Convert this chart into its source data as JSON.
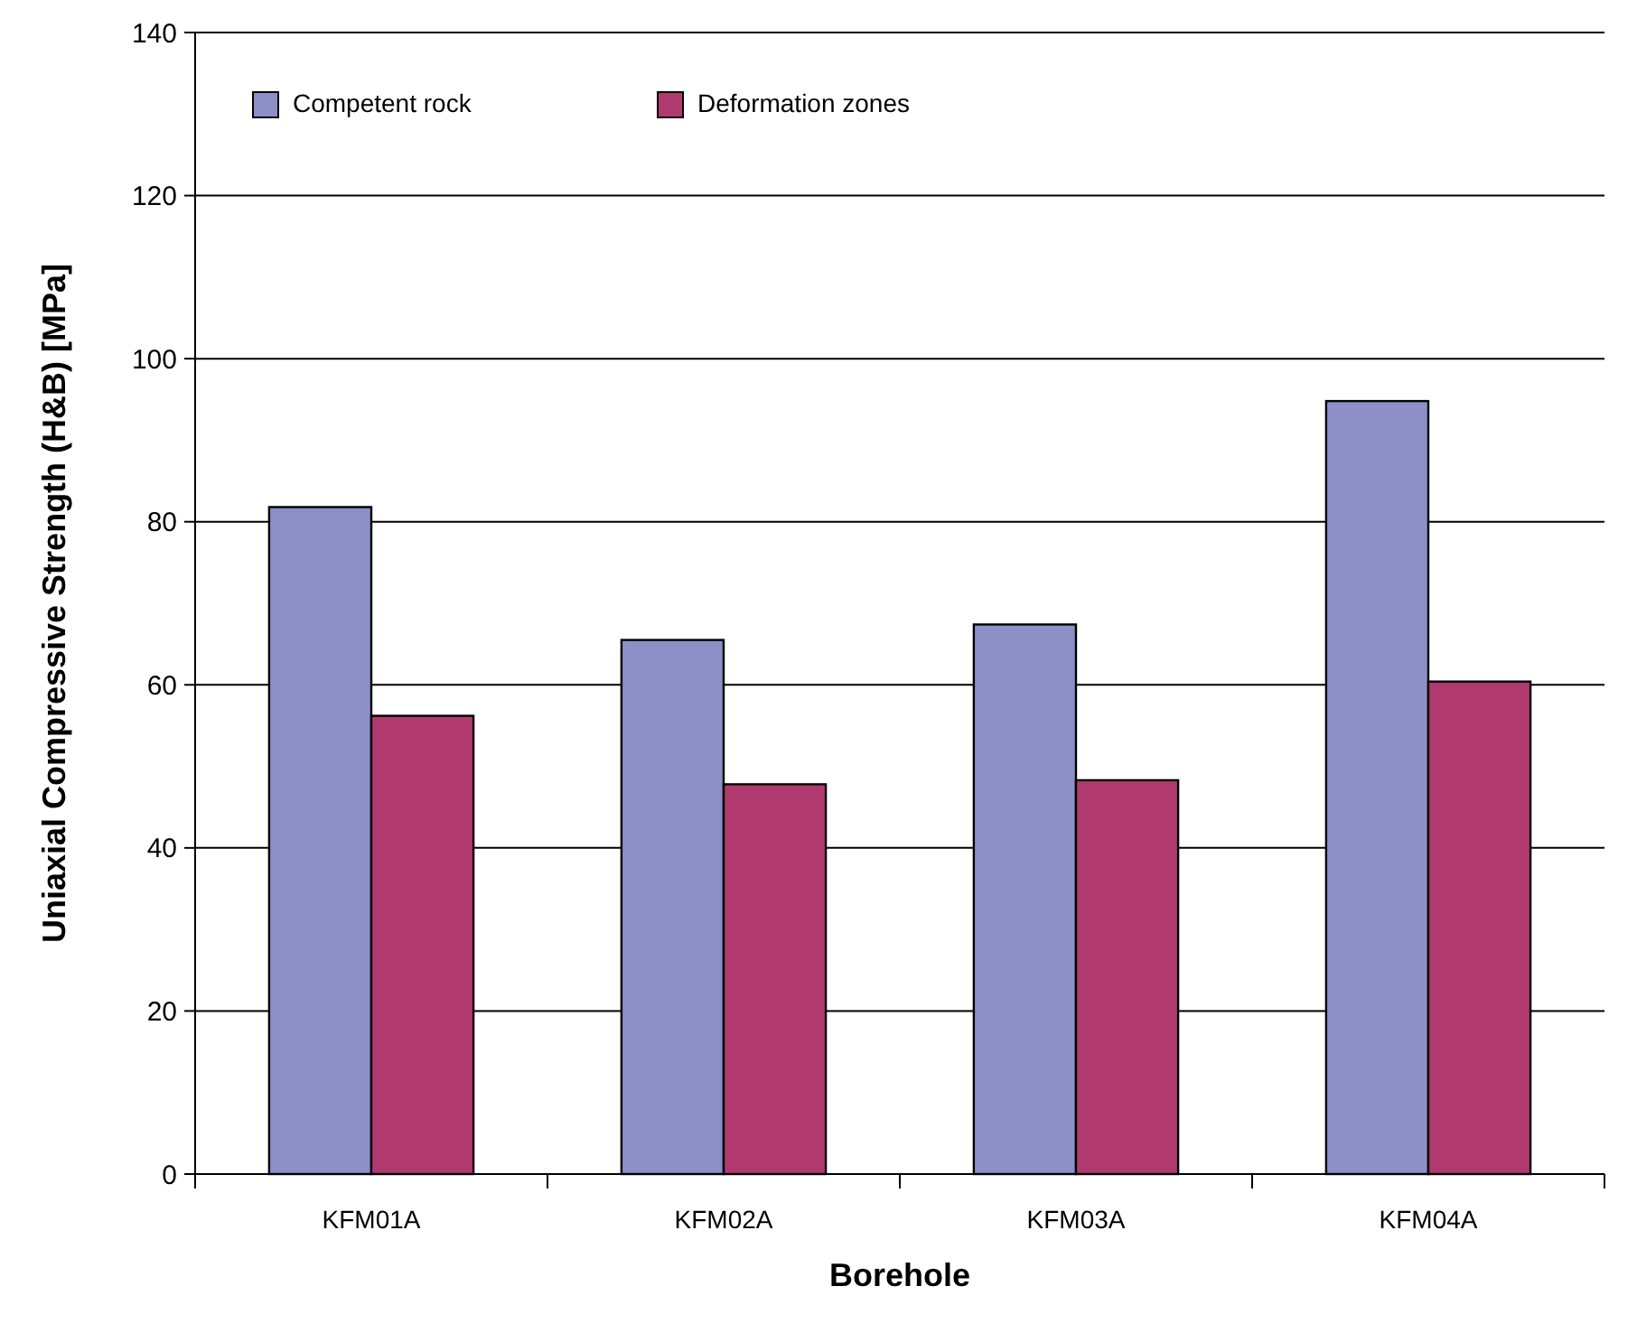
{
  "chart_data": {
    "type": "bar",
    "xlabel": "Borehole",
    "ylabel": "Uniaxial Compressive Strength (H&B) [MPa]",
    "categories": [
      "KFM01A",
      "KFM02A",
      "KFM03A",
      "KFM04A"
    ],
    "series": [
      {
        "name": "Competent rock",
        "color": "#8c90c6",
        "values": [
          81.8,
          65.5,
          67.4,
          94.8
        ]
      },
      {
        "name": "Deformation zones",
        "color": "#b03a6e",
        "values": [
          56.2,
          47.8,
          48.3,
          60.4
        ]
      }
    ],
    "ylim": [
      0,
      140
    ],
    "yticks": [
      0,
      20,
      40,
      60,
      80,
      100,
      120,
      140
    ],
    "grid": "y",
    "legend": "top left"
  }
}
